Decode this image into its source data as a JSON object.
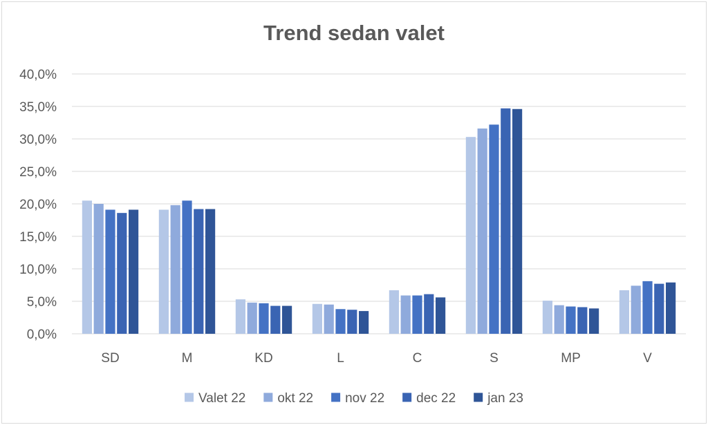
{
  "chart_data": {
    "type": "bar",
    "title": "Trend sedan valet",
    "xlabel": "",
    "ylabel": "",
    "categories": [
      "SD",
      "M",
      "KD",
      "L",
      "C",
      "S",
      "MP",
      "V"
    ],
    "ylim": [
      0,
      40
    ],
    "yticks": [
      "0,0%",
      "5,0%",
      "10,0%",
      "15,0%",
      "20,0%",
      "25,0%",
      "30,0%",
      "35,0%",
      "40,0%"
    ],
    "grid": true,
    "legend_position": "bottom",
    "series": [
      {
        "name": "Valet 22",
        "color": "#b4c7e7",
        "values": [
          20.5,
          19.1,
          5.3,
          4.6,
          6.7,
          30.3,
          5.1,
          6.7
        ]
      },
      {
        "name": "okt 22",
        "color": "#8faadc",
        "values": [
          20.0,
          19.8,
          4.8,
          4.5,
          5.9,
          31.6,
          4.4,
          7.4
        ]
      },
      {
        "name": "nov 22",
        "color": "#4472c4",
        "values": [
          19.1,
          20.5,
          4.7,
          3.8,
          5.9,
          32.2,
          4.2,
          8.1
        ]
      },
      {
        "name": "dec 22",
        "color": "#3a64b3",
        "values": [
          18.6,
          19.2,
          4.3,
          3.7,
          6.1,
          34.7,
          4.1,
          7.7
        ]
      },
      {
        "name": "jan 23",
        "color": "#2f5597",
        "values": [
          19.1,
          19.2,
          4.3,
          3.5,
          5.6,
          34.6,
          3.9,
          7.9
        ]
      }
    ]
  }
}
